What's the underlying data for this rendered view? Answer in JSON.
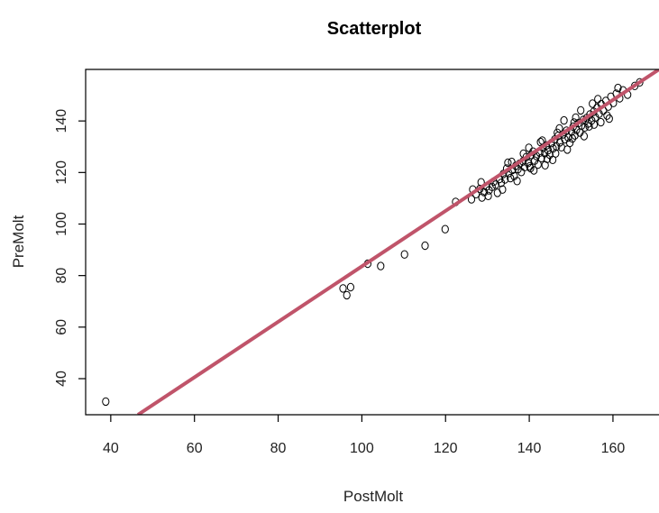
{
  "chart_data": {
    "type": "scatter",
    "title": "Scatterplot",
    "xlabel": "PostMolt",
    "ylabel": "PreMolt",
    "xlim": [
      34,
      171
    ],
    "ylim": [
      26,
      160
    ],
    "xticks": [
      40,
      60,
      80,
      100,
      120,
      140,
      160
    ],
    "yticks": [
      40,
      60,
      80,
      100,
      120,
      140
    ],
    "grid": false,
    "point_color": "#000000",
    "line_color": "#c0546a",
    "fit_line": {
      "from": [
        46.5,
        26
      ],
      "to": [
        171,
        160
      ]
    },
    "points": [
      [
        38.8,
        31.1
      ],
      [
        95.5,
        75
      ],
      [
        96.4,
        72.4
      ],
      [
        97.3,
        75.5
      ],
      [
        101.4,
        84.6
      ],
      [
        104.5,
        83.7
      ],
      [
        110.2,
        88.2
      ],
      [
        115.1,
        91.6
      ],
      [
        119.9,
        98
      ],
      [
        122.4,
        108.6
      ],
      [
        126.2,
        109.6
      ],
      [
        126.5,
        113.4
      ],
      [
        127.3,
        111.6
      ],
      [
        128.2,
        113.6
      ],
      [
        128.7,
        110.3
      ],
      [
        129.2,
        112.4
      ],
      [
        129.8,
        114.6
      ],
      [
        130.4,
        113.1
      ],
      [
        131.1,
        114.4
      ],
      [
        131.5,
        116.4
      ],
      [
        132,
        115.3
      ],
      [
        132.4,
        112.1
      ],
      [
        132.9,
        117.5
      ],
      [
        133.3,
        116
      ],
      [
        133.8,
        119.4
      ],
      [
        134.2,
        117.3
      ],
      [
        134.6,
        121.5
      ],
      [
        135.1,
        119.8
      ],
      [
        135.5,
        117.8
      ],
      [
        136,
        121
      ],
      [
        136.4,
        118.6
      ],
      [
        136.8,
        122.6
      ],
      [
        137.3,
        121.3
      ],
      [
        137.7,
        123.4
      ],
      [
        138.1,
        120.2
      ],
      [
        138.5,
        124.3
      ],
      [
        138.9,
        122.1
      ],
      [
        139.3,
        126
      ],
      [
        139.7,
        123.7
      ],
      [
        140.1,
        122.4
      ],
      [
        140.5,
        126.8
      ],
      [
        140.9,
        128.1
      ],
      [
        141.3,
        124.6
      ],
      [
        141.7,
        126.4
      ],
      [
        142.1,
        123.1
      ],
      [
        142.5,
        127.7
      ],
      [
        142.9,
        125.6
      ],
      [
        143.3,
        129.6
      ],
      [
        143.7,
        127.5
      ],
      [
        144.1,
        130.5
      ],
      [
        144.5,
        128.6
      ],
      [
        144.9,
        126.9
      ],
      [
        145.3,
        131.4
      ],
      [
        145.7,
        129.3
      ],
      [
        146.1,
        132.8
      ],
      [
        146.5,
        130.1
      ],
      [
        146.9,
        134.2
      ],
      [
        147.3,
        131.7
      ],
      [
        147.7,
        129.8
      ],
      [
        148.1,
        134.8
      ],
      [
        148.5,
        132.9
      ],
      [
        148.9,
        136.2
      ],
      [
        149.3,
        133.6
      ],
      [
        149.7,
        131.5
      ],
      [
        150.1,
        135.9
      ],
      [
        150.5,
        137.8
      ],
      [
        150.9,
        134.4
      ],
      [
        151.3,
        136.6
      ],
      [
        151.7,
        139.1
      ],
      [
        152.1,
        135.5
      ],
      [
        152.5,
        138.2
      ],
      [
        152.9,
        140.4
      ],
      [
        153.3,
        137.5
      ],
      [
        153.7,
        141.1
      ],
      [
        154.1,
        139
      ],
      [
        154.5,
        142.5
      ],
      [
        154.9,
        140.2
      ],
      [
        155.4,
        143.6
      ],
      [
        155.8,
        141.4
      ],
      [
        156.2,
        145.1
      ],
      [
        156.7,
        142.8
      ],
      [
        157.2,
        146.5
      ],
      [
        157.7,
        144
      ],
      [
        158.3,
        147.8
      ],
      [
        158.9,
        145.6
      ],
      [
        159.5,
        149.4
      ],
      [
        160.1,
        147
      ],
      [
        160.8,
        150.6
      ],
      [
        161.6,
        148.8
      ],
      [
        162.4,
        151.9
      ],
      [
        163.5,
        150.2
      ],
      [
        165.2,
        153.6
      ],
      [
        166.4,
        155
      ],
      [
        128.5,
        116.2
      ],
      [
        130.2,
        110.9
      ],
      [
        133.6,
        113.4
      ],
      [
        135.8,
        124.1
      ],
      [
        137.1,
        116.7
      ],
      [
        139.9,
        129.6
      ],
      [
        141.1,
        120.8
      ],
      [
        143.1,
        132.4
      ],
      [
        145.6,
        124.9
      ],
      [
        147.2,
        137.1
      ],
      [
        149.1,
        128.9
      ],
      [
        151.1,
        141.3
      ],
      [
        153.1,
        134.1
      ],
      [
        155.1,
        146.7
      ],
      [
        157.1,
        139.5
      ],
      [
        159.1,
        140.9
      ],
      [
        161.2,
        152.8
      ],
      [
        143.8,
        122.8
      ],
      [
        146.3,
        127.4
      ],
      [
        150.3,
        133.2
      ],
      [
        154.3,
        137.9
      ],
      [
        158.6,
        142.1
      ],
      [
        148.3,
        140.2
      ],
      [
        152.3,
        144.1
      ],
      [
        156.4,
        148.5
      ],
      [
        134.9,
        123.8
      ],
      [
        138.6,
        127.3
      ],
      [
        142.7,
        131.8
      ],
      [
        146.7,
        135.4
      ],
      [
        150.7,
        139.4
      ],
      [
        155.5,
        138.6
      ],
      [
        140.3,
        121.7
      ],
      [
        144.3,
        125.3
      ]
    ]
  }
}
